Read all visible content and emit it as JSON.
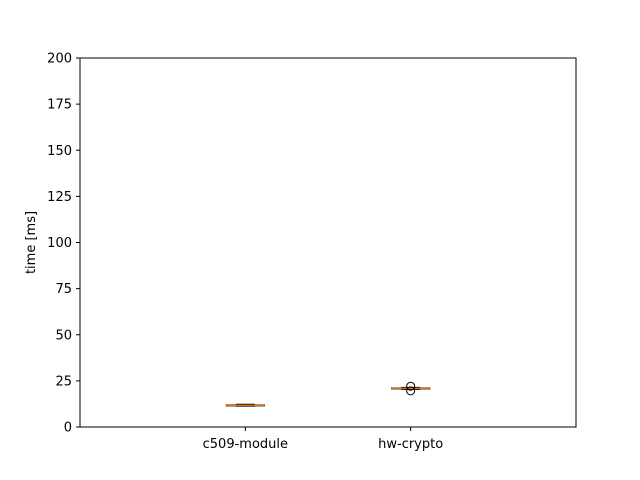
{
  "chart_data": {
    "type": "box",
    "title": "",
    "xlabel": "",
    "ylabel": "time [ms]",
    "ylim": [
      0,
      200
    ],
    "yticks": [
      "0",
      "25",
      "50",
      "75",
      "100",
      "125",
      "150",
      "175",
      "200"
    ],
    "categories": [
      "c509-module",
      "hw-crypto"
    ],
    "boxes": [
      {
        "category": "c509-module",
        "whislo": 11.3,
        "q1": 11.6,
        "median": 11.8,
        "q3": 12.0,
        "whishi": 12.3,
        "fliers": []
      },
      {
        "category": "hw-crypto",
        "whislo": 20.4,
        "q1": 20.8,
        "median": 21.0,
        "q3": 21.2,
        "whishi": 21.5,
        "fliers": [
          19.6,
          22.1
        ]
      }
    ],
    "grid": false,
    "colors": {
      "box": "#000000",
      "median": "#ff7f0e",
      "whisker": "#000000",
      "flier": "#000000"
    }
  }
}
